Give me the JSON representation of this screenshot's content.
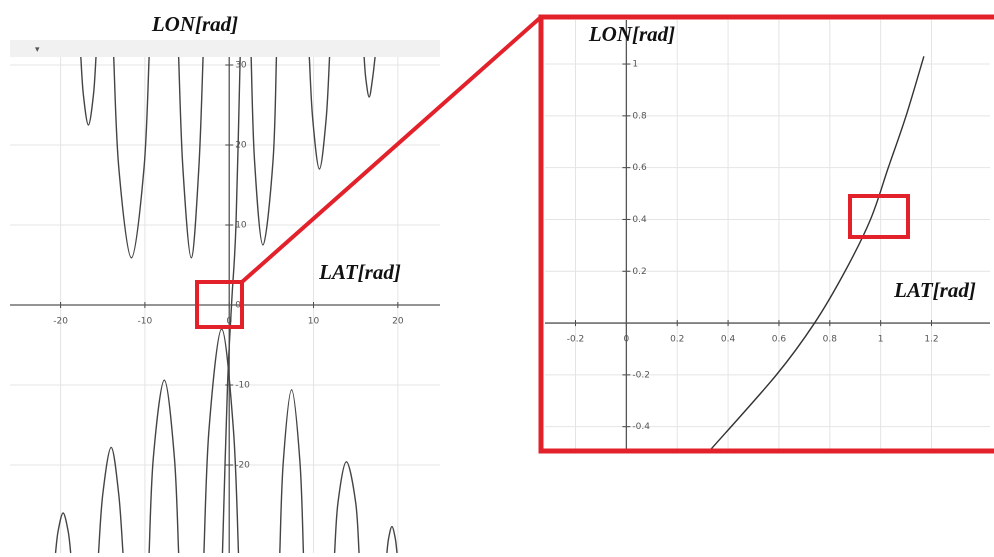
{
  "chart_data": [
    {
      "type": "line",
      "xlabel": "LAT[rad]",
      "ylabel": "LON[rad]",
      "xlim": [
        -26,
        25
      ],
      "ylim": [
        -31,
        31
      ],
      "xticks": [
        -20,
        -10,
        0,
        10,
        20
      ],
      "yticks": [
        -20,
        -10,
        0,
        10,
        20,
        30
      ],
      "grid": true,
      "series": [
        {
          "color": "#444444",
          "x": [
            -17.6,
            -17.3,
            -16.7,
            -16.1,
            -15.8
          ],
          "values": [
            31,
            26.3,
            22.5,
            26.3,
            31
          ]
        },
        {
          "color": "#444444",
          "x": [
            -13.7,
            -13.1,
            -11.6,
            -10.1,
            -9.5
          ],
          "values": [
            31,
            17.2,
            5.9,
            17.2,
            31
          ]
        },
        {
          "color": "#444444",
          "x": [
            -6.0,
            -5.5,
            -4.5,
            -3.6,
            -3.1
          ],
          "values": [
            31,
            17.2,
            5.9,
            17.2,
            31
          ]
        },
        {
          "color": "#444444",
          "x": [
            2.6,
            3.0,
            4.0,
            5.2,
            5.6
          ],
          "values": [
            31,
            18.1,
            7.5,
            18.1,
            31
          ]
        },
        {
          "color": "#444444",
          "x": [
            9.5,
            9.9,
            10.7,
            11.5,
            11.9
          ],
          "values": [
            31,
            23.3,
            17,
            23.3,
            31
          ]
        },
        {
          "color": "#444444",
          "x": [
            16.0,
            16.2,
            16.6,
            17.0,
            17.3
          ],
          "values": [
            31,
            28.3,
            26,
            28.3,
            31
          ]
        },
        {
          "color": "#444444",
          "x": [
            -20.6,
            -20.3,
            -19.7,
            -19.1,
            -18.8
          ],
          "values": [
            -31,
            -28.3,
            -26,
            -28.3,
            -31
          ]
        },
        {
          "color": "#444444",
          "x": [
            -15.5,
            -15.0,
            -14.0,
            -13.1,
            -12.6
          ],
          "values": [
            -31,
            -23.7,
            -17.8,
            -23.7,
            -31
          ]
        },
        {
          "color": "#444444",
          "x": [
            -9.5,
            -9.0,
            -7.7,
            -6.5,
            -6.0
          ],
          "values": [
            -31,
            -19.1,
            -9.4,
            -19.1,
            -31
          ]
        },
        {
          "color": "#444444",
          "x": [
            -3.0,
            -2.4,
            -0.9,
            0.5,
            1.1
          ],
          "values": [
            -31,
            -15.6,
            -3,
            -15.6,
            -31
          ]
        },
        {
          "color": "#444444",
          "x": [
            6.0,
            6.4,
            7.4,
            8.4,
            8.8
          ],
          "values": [
            -31,
            -19.8,
            -10.6,
            -19.8,
            -31
          ]
        },
        {
          "color": "#444444",
          "x": [
            12.5,
            12.9,
            13.9,
            15.0,
            15.4
          ],
          "values": [
            -31,
            -24.7,
            -19.6,
            -24.7,
            -31
          ]
        },
        {
          "color": "#444444",
          "x": [
            18.7,
            18.9,
            19.3,
            19.7,
            19.9
          ],
          "values": [
            -31,
            -29.2,
            -27.7,
            -29.2,
            -31
          ]
        },
        {
          "color": "#444444",
          "x": [
            -0.8,
            -0.2,
            0.3,
            0.8,
            1.3
          ],
          "values": [
            -31,
            -10,
            0.5,
            10,
            31
          ]
        }
      ]
    },
    {
      "type": "line",
      "xlabel": "LAT[rad]",
      "ylabel": "LON[rad]",
      "xlim": [
        -0.32,
        1.43
      ],
      "ylim": [
        -0.49,
        1.17
      ],
      "xticks": [
        -0.2,
        0,
        0.2,
        0.4,
        0.6,
        0.8,
        1,
        1.2
      ],
      "yticks": [
        -0.4,
        -0.2,
        0.2,
        0.4,
        0.6,
        0.8,
        1
      ],
      "grid": true,
      "series": [
        {
          "color": "#333333",
          "x": [
            0.33,
            0.59,
            0.74,
            0.86,
            0.96,
            1.03,
            1.1,
            1.17
          ],
          "values": [
            -0.49,
            -0.2,
            0,
            0.2,
            0.4,
            0.6,
            0.8,
            1.03
          ]
        }
      ]
    }
  ]
}
